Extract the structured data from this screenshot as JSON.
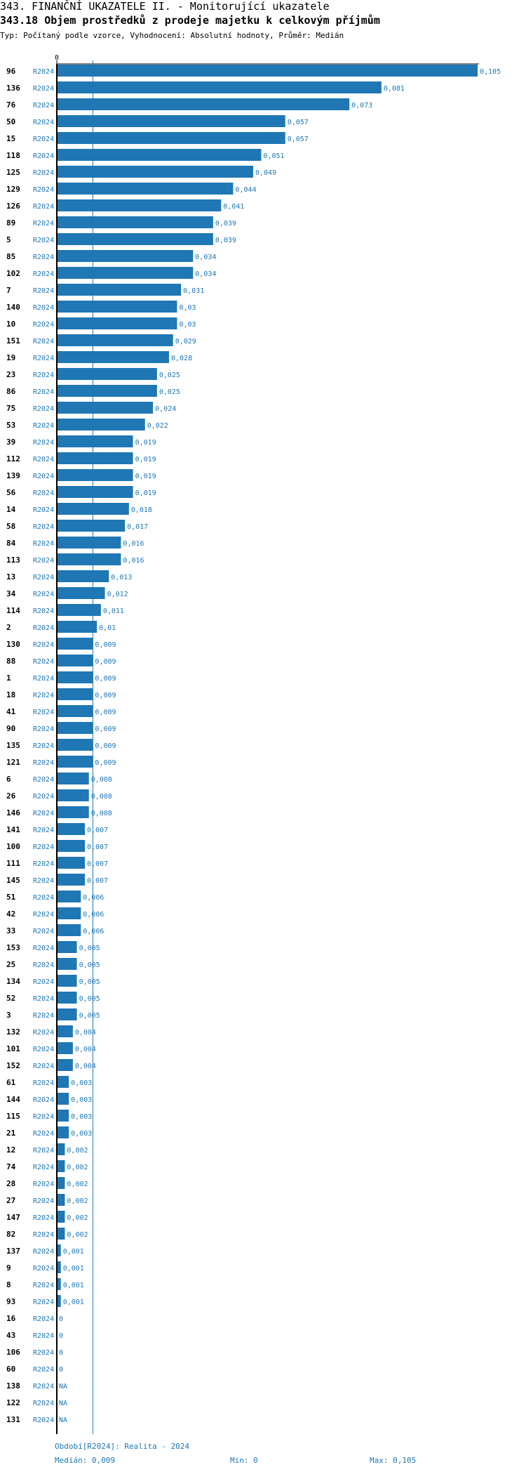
{
  "header": {
    "title": "343. FINANČNÍ UKAZATELE II. - Monitorující ukazatele",
    "subtitle": "343.18 Objem prostředků z prodeje majetku k celkovým příjmům",
    "description": "Typ: Počítaný podle vzorce, Vyhodnocení: Absolutní hodnoty, Průměr: Medián"
  },
  "colors": {
    "bar": "#1f77b4",
    "value_text": "#1f77b4",
    "axis": "#000000",
    "median_line": "#1f77b4"
  },
  "chart_data": {
    "type": "bar",
    "orientation": "horizontal",
    "x_tick_label": "0",
    "xlim": [
      0,
      0.105
    ],
    "median_line": 0.009,
    "series": "R2024",
    "rows": [
      {
        "id": "96",
        "series": "R2024",
        "value": 0.105,
        "label": "0,105"
      },
      {
        "id": "136",
        "series": "R2024",
        "value": 0.081,
        "label": "0,081"
      },
      {
        "id": "76",
        "series": "R2024",
        "value": 0.073,
        "label": "0,073"
      },
      {
        "id": "50",
        "series": "R2024",
        "value": 0.057,
        "label": "0,057"
      },
      {
        "id": "15",
        "series": "R2024",
        "value": 0.057,
        "label": "0,057"
      },
      {
        "id": "118",
        "series": "R2024",
        "value": 0.051,
        "label": "0,051"
      },
      {
        "id": "125",
        "series": "R2024",
        "value": 0.049,
        "label": "0,049"
      },
      {
        "id": "129",
        "series": "R2024",
        "value": 0.044,
        "label": "0,044"
      },
      {
        "id": "126",
        "series": "R2024",
        "value": 0.041,
        "label": "0,041"
      },
      {
        "id": "89",
        "series": "R2024",
        "value": 0.039,
        "label": "0,039"
      },
      {
        "id": "5",
        "series": "R2024",
        "value": 0.039,
        "label": "0,039"
      },
      {
        "id": "85",
        "series": "R2024",
        "value": 0.034,
        "label": "0,034"
      },
      {
        "id": "102",
        "series": "R2024",
        "value": 0.034,
        "label": "0,034"
      },
      {
        "id": "7",
        "series": "R2024",
        "value": 0.031,
        "label": "0,031"
      },
      {
        "id": "140",
        "series": "R2024",
        "value": 0.03,
        "label": "0,03"
      },
      {
        "id": "10",
        "series": "R2024",
        "value": 0.03,
        "label": "0,03"
      },
      {
        "id": "151",
        "series": "R2024",
        "value": 0.029,
        "label": "0,029"
      },
      {
        "id": "19",
        "series": "R2024",
        "value": 0.028,
        "label": "0,028"
      },
      {
        "id": "23",
        "series": "R2024",
        "value": 0.025,
        "label": "0,025"
      },
      {
        "id": "86",
        "series": "R2024",
        "value": 0.025,
        "label": "0,025"
      },
      {
        "id": "75",
        "series": "R2024",
        "value": 0.024,
        "label": "0,024"
      },
      {
        "id": "53",
        "series": "R2024",
        "value": 0.022,
        "label": "0,022"
      },
      {
        "id": "39",
        "series": "R2024",
        "value": 0.019,
        "label": "0,019"
      },
      {
        "id": "112",
        "series": "R2024",
        "value": 0.019,
        "label": "0,019"
      },
      {
        "id": "139",
        "series": "R2024",
        "value": 0.019,
        "label": "0,019"
      },
      {
        "id": "56",
        "series": "R2024",
        "value": 0.019,
        "label": "0,019"
      },
      {
        "id": "14",
        "series": "R2024",
        "value": 0.018,
        "label": "0,018"
      },
      {
        "id": "58",
        "series": "R2024",
        "value": 0.017,
        "label": "0,017"
      },
      {
        "id": "84",
        "series": "R2024",
        "value": 0.016,
        "label": "0,016"
      },
      {
        "id": "113",
        "series": "R2024",
        "value": 0.016,
        "label": "0,016"
      },
      {
        "id": "13",
        "series": "R2024",
        "value": 0.013,
        "label": "0,013"
      },
      {
        "id": "34",
        "series": "R2024",
        "value": 0.012,
        "label": "0,012"
      },
      {
        "id": "114",
        "series": "R2024",
        "value": 0.011,
        "label": "0,011"
      },
      {
        "id": "2",
        "series": "R2024",
        "value": 0.01,
        "label": "0,01"
      },
      {
        "id": "130",
        "series": "R2024",
        "value": 0.009,
        "label": "0,009"
      },
      {
        "id": "88",
        "series": "R2024",
        "value": 0.009,
        "label": "0,009"
      },
      {
        "id": "1",
        "series": "R2024",
        "value": 0.009,
        "label": "0,009"
      },
      {
        "id": "18",
        "series": "R2024",
        "value": 0.009,
        "label": "0,009"
      },
      {
        "id": "41",
        "series": "R2024",
        "value": 0.009,
        "label": "0,009"
      },
      {
        "id": "90",
        "series": "R2024",
        "value": 0.009,
        "label": "0,009"
      },
      {
        "id": "135",
        "series": "R2024",
        "value": 0.009,
        "label": "0,009"
      },
      {
        "id": "121",
        "series": "R2024",
        "value": 0.009,
        "label": "0,009"
      },
      {
        "id": "6",
        "series": "R2024",
        "value": 0.008,
        "label": "0,008"
      },
      {
        "id": "26",
        "series": "R2024",
        "value": 0.008,
        "label": "0,008"
      },
      {
        "id": "146",
        "series": "R2024",
        "value": 0.008,
        "label": "0,008"
      },
      {
        "id": "141",
        "series": "R2024",
        "value": 0.007,
        "label": "0,007"
      },
      {
        "id": "100",
        "series": "R2024",
        "value": 0.007,
        "label": "0,007"
      },
      {
        "id": "111",
        "series": "R2024",
        "value": 0.007,
        "label": "0,007"
      },
      {
        "id": "145",
        "series": "R2024",
        "value": 0.007,
        "label": "0,007"
      },
      {
        "id": "51",
        "series": "R2024",
        "value": 0.006,
        "label": "0,006"
      },
      {
        "id": "42",
        "series": "R2024",
        "value": 0.006,
        "label": "0,006"
      },
      {
        "id": "33",
        "series": "R2024",
        "value": 0.006,
        "label": "0,006"
      },
      {
        "id": "153",
        "series": "R2024",
        "value": 0.005,
        "label": "0,005"
      },
      {
        "id": "25",
        "series": "R2024",
        "value": 0.005,
        "label": "0,005"
      },
      {
        "id": "134",
        "series": "R2024",
        "value": 0.005,
        "label": "0,005"
      },
      {
        "id": "52",
        "series": "R2024",
        "value": 0.005,
        "label": "0,005"
      },
      {
        "id": "3",
        "series": "R2024",
        "value": 0.005,
        "label": "0,005"
      },
      {
        "id": "132",
        "series": "R2024",
        "value": 0.004,
        "label": "0,004"
      },
      {
        "id": "101",
        "series": "R2024",
        "value": 0.004,
        "label": "0,004"
      },
      {
        "id": "152",
        "series": "R2024",
        "value": 0.004,
        "label": "0,004"
      },
      {
        "id": "61",
        "series": "R2024",
        "value": 0.003,
        "label": "0,003"
      },
      {
        "id": "144",
        "series": "R2024",
        "value": 0.003,
        "label": "0,003"
      },
      {
        "id": "115",
        "series": "R2024",
        "value": 0.003,
        "label": "0,003"
      },
      {
        "id": "21",
        "series": "R2024",
        "value": 0.003,
        "label": "0,003"
      },
      {
        "id": "12",
        "series": "R2024",
        "value": 0.002,
        "label": "0,002"
      },
      {
        "id": "74",
        "series": "R2024",
        "value": 0.002,
        "label": "0,002"
      },
      {
        "id": "28",
        "series": "R2024",
        "value": 0.002,
        "label": "0,002"
      },
      {
        "id": "27",
        "series": "R2024",
        "value": 0.002,
        "label": "0,002"
      },
      {
        "id": "147",
        "series": "R2024",
        "value": 0.002,
        "label": "0,002"
      },
      {
        "id": "82",
        "series": "R2024",
        "value": 0.002,
        "label": "0,002"
      },
      {
        "id": "137",
        "series": "R2024",
        "value": 0.001,
        "label": "0,001"
      },
      {
        "id": "9",
        "series": "R2024",
        "value": 0.001,
        "label": "0,001"
      },
      {
        "id": "8",
        "series": "R2024",
        "value": 0.001,
        "label": "0,001"
      },
      {
        "id": "93",
        "series": "R2024",
        "value": 0.001,
        "label": "0,001"
      },
      {
        "id": "16",
        "series": "R2024",
        "value": 0,
        "label": "0"
      },
      {
        "id": "43",
        "series": "R2024",
        "value": 0,
        "label": "0"
      },
      {
        "id": "106",
        "series": "R2024",
        "value": 0,
        "label": "0"
      },
      {
        "id": "60",
        "series": "R2024",
        "value": 0,
        "label": "0"
      },
      {
        "id": "138",
        "series": "R2024",
        "value": null,
        "label": "NA"
      },
      {
        "id": "122",
        "series": "R2024",
        "value": null,
        "label": "NA"
      },
      {
        "id": "131",
        "series": "R2024",
        "value": null,
        "label": "NA"
      }
    ]
  },
  "footer": {
    "period": "Období[R2024]: Realita - 2024",
    "median": "Medián: 0,009",
    "min": "Min: 0",
    "max": "Max: 0,105"
  }
}
